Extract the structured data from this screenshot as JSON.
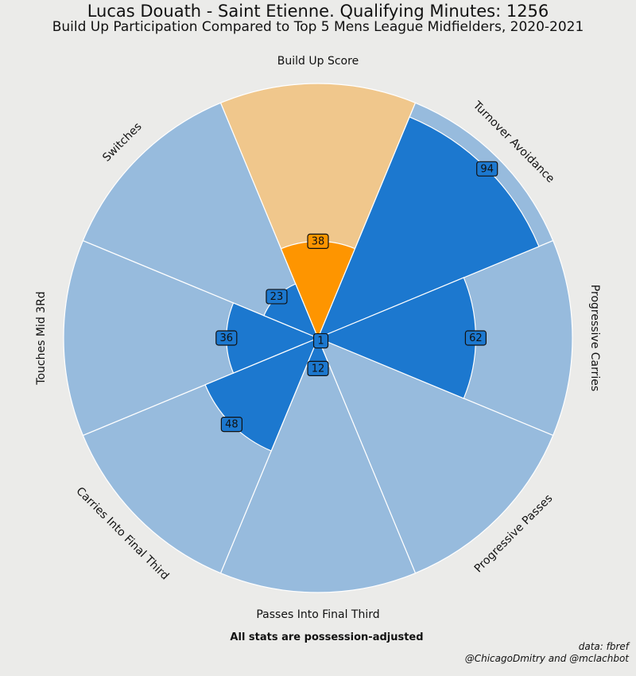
{
  "header": {
    "title": "Lucas Douath - Saint Etienne. Qualifying Minutes: 1256",
    "subtitle": "Build Up Participation Compared to Top 5 Mens League Midfielders, 2020-2021"
  },
  "footer": {
    "note": "All stats are possession-adjusted",
    "source": "data: fbref",
    "handles": "@ChicagoDmitry and @mclachbot"
  },
  "colors": {
    "background": "#ebebe9",
    "slice_bg": "#97bbdd",
    "slice_fill": "#1c78cf",
    "highlight_bg": "#f0c78c",
    "highlight_fill": "#fe9500",
    "border": "#ffffff"
  },
  "chart_data": {
    "type": "polar-bar",
    "title": "Lucas Douath - Saint Etienne. Qualifying Minutes: 1256",
    "subtitle": "Build Up Participation Compared to Top 5 Mens League Midfielders, 2020-2021",
    "rlim": [
      0,
      100
    ],
    "categories": [
      "Build Up Score",
      "Turnover Avoidance",
      "Progressive Carries",
      "Progressive Passes",
      "Passes Into Final Third",
      "Carries Into Final Third",
      "Touches Mid 3Rd",
      "Switches"
    ],
    "values": [
      38,
      94,
      62,
      1,
      12,
      48,
      36,
      23
    ],
    "value_labels": [
      "38",
      "94",
      "62",
      "1",
      "12",
      "48",
      "36",
      "23"
    ],
    "highlight_category": "Build Up Score"
  }
}
